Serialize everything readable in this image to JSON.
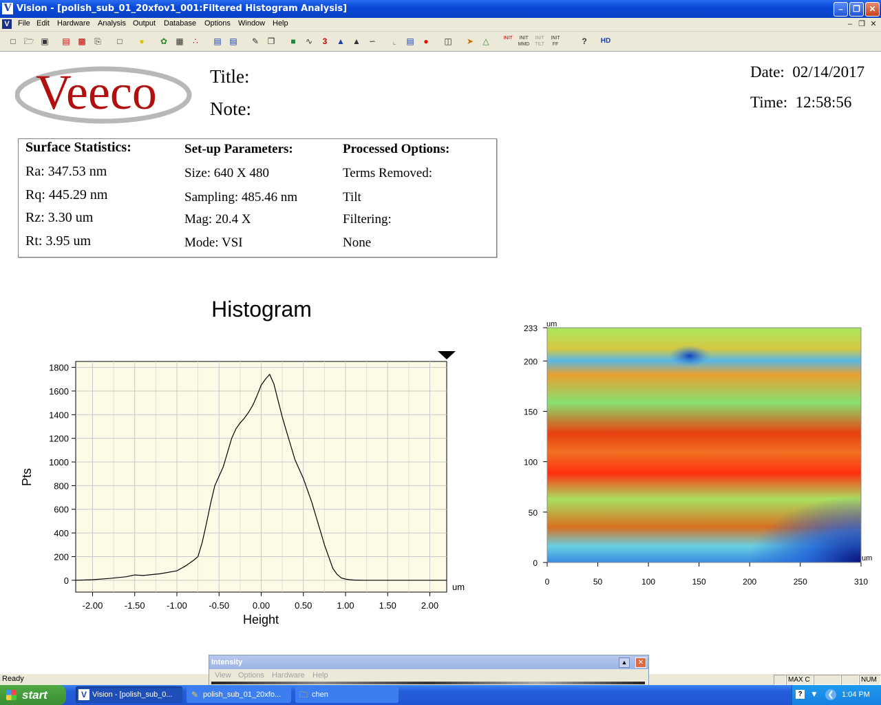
{
  "window": {
    "app_icon_letter": "V",
    "title": "Vision - [polish_sub_01_20xfov1_001:Filtered Histogram Analysis]"
  },
  "menu": [
    "File",
    "Edit",
    "Hardware",
    "Analysis",
    "Output",
    "Database",
    "Options",
    "Window",
    "Help"
  ],
  "toolbar_icons": [
    "new-icon",
    "open-icon",
    "save-icon",
    "print-setup-icon",
    "print-preview-icon",
    "print-icon",
    "page-icon",
    "light-icon",
    "palette-icon",
    "mask-icon",
    "dots-icon",
    "report-icon",
    "report2-icon",
    "ruler-icon",
    "copy-icon",
    "map-icon",
    "profile-icon",
    "3d-icon",
    "stats-icon",
    "histogram-icon",
    "curve-icon",
    "crop-icon",
    "plot-icon",
    "record-icon",
    "tilt-icon",
    "cursor-icon",
    "flask-icon",
    "init-icon",
    "init-mmd-icon",
    "init-tilt-icon",
    "init-ff-icon",
    "help-icon",
    "hd-icon"
  ],
  "toolbar_text": {
    "init": "INIT",
    "init_mmd": "INIT MMD",
    "init_tilt": "INIT TILT",
    "init_ff": "INIT FF",
    "hd": "HD",
    "help": "?",
    "three_d": "3"
  },
  "report": {
    "logo_text": "Veeco",
    "title_label": "Title:",
    "note_label": "Note:",
    "date_label": "Date:",
    "date_value": "02/14/2017",
    "time_label": "Time:",
    "time_value": "12:58:56"
  },
  "stats": {
    "surface_heading": "Surface Statistics:",
    "ra": "Ra:  347.53 nm",
    "rq": "Rq:  445.29 nm",
    "rz": "Rz:  3.30 um",
    "rt": "Rt:  3.95 um",
    "setup_heading": "Set-up Parameters:",
    "size": "Size: 640 X 480",
    "sampling": "Sampling:  485.46 nm",
    "mag": "Mag:  20.4 X",
    "mode": "Mode:  VSI",
    "processed_heading": "Processed Options:",
    "terms_removed": "Terms Removed:",
    "tilt": "Tilt",
    "filtering": "Filtering:",
    "none": "None"
  },
  "chart_data": [
    {
      "type": "line",
      "title": "Histogram",
      "xlabel": "Height",
      "ylabel": "Pts",
      "x_unit": "um",
      "xlim": [
        -2.2,
        2.2
      ],
      "ylim": [
        -100,
        1850
      ],
      "x_ticks": [
        "-2.00",
        "-1.50",
        "-1.00",
        "-0.50",
        "0.00",
        "0.50",
        "1.00",
        "1.50",
        "2.00"
      ],
      "y_ticks": [
        "0",
        "200",
        "400",
        "600",
        "800",
        "1000",
        "1200",
        "1400",
        "1600",
        "1800"
      ],
      "grid": true,
      "series": [
        {
          "x": [
            -2.2,
            -2.0,
            -1.8,
            -1.6,
            -1.5,
            -1.4,
            -1.2,
            -1.0,
            -0.9,
            -0.8,
            -0.75,
            -0.7,
            -0.65,
            -0.6,
            -0.55,
            -0.5,
            -0.45,
            -0.4,
            -0.35,
            -0.3,
            -0.25,
            -0.2,
            -0.15,
            -0.1,
            -0.05,
            0.0,
            0.05,
            0.1,
            0.15,
            0.2,
            0.25,
            0.3,
            0.35,
            0.4,
            0.45,
            0.5,
            0.55,
            0.6,
            0.65,
            0.7,
            0.75,
            0.8,
            0.85,
            0.9,
            0.95,
            1.0,
            1.05,
            1.1,
            1.2,
            1.3,
            1.5,
            1.8,
            2.2
          ],
          "y": [
            0,
            5,
            15,
            30,
            45,
            40,
            55,
            80,
            120,
            170,
            200,
            320,
            480,
            650,
            800,
            880,
            960,
            1080,
            1200,
            1280,
            1330,
            1370,
            1420,
            1480,
            1560,
            1650,
            1700,
            1740,
            1660,
            1520,
            1380,
            1260,
            1140,
            1020,
            940,
            860,
            760,
            660,
            540,
            420,
            300,
            200,
            100,
            50,
            20,
            10,
            5,
            2,
            0,
            0,
            0,
            0,
            0
          ]
        }
      ]
    },
    {
      "type": "heatmap",
      "x_unit": "um",
      "y_unit": "um",
      "x_ticks": [
        "0",
        "50",
        "100",
        "150",
        "200",
        "250",
        "310"
      ],
      "y_ticks": [
        "0",
        "50",
        "100",
        "150",
        "200",
        "233"
      ],
      "xlim": [
        0,
        310
      ],
      "ylim": [
        0,
        233
      ],
      "colormap": [
        "#0a1a8a",
        "#2a7ae8",
        "#6ad0e8",
        "#80f080",
        "#e8e020",
        "#f08010",
        "#ff2000"
      ]
    }
  ],
  "status": {
    "text": "Ready",
    "panes": [
      "",
      "MAX C",
      "",
      "",
      "NUM"
    ]
  },
  "intensity_window": {
    "title": "Intensity",
    "menu": [
      "View",
      "Options",
      "Hardware",
      "Help"
    ]
  },
  "taskbar": {
    "start": "start",
    "tasks": [
      "Vision - [polish_sub_0...",
      "polish_sub_01_20xfo...",
      "chen"
    ],
    "clock": "1:04 PM"
  },
  "colors": {
    "titlebar": "#0a4ad8",
    "plot_bg": "#fdfbe6",
    "taskbar": "#245edb",
    "start": "#3c8f33"
  }
}
